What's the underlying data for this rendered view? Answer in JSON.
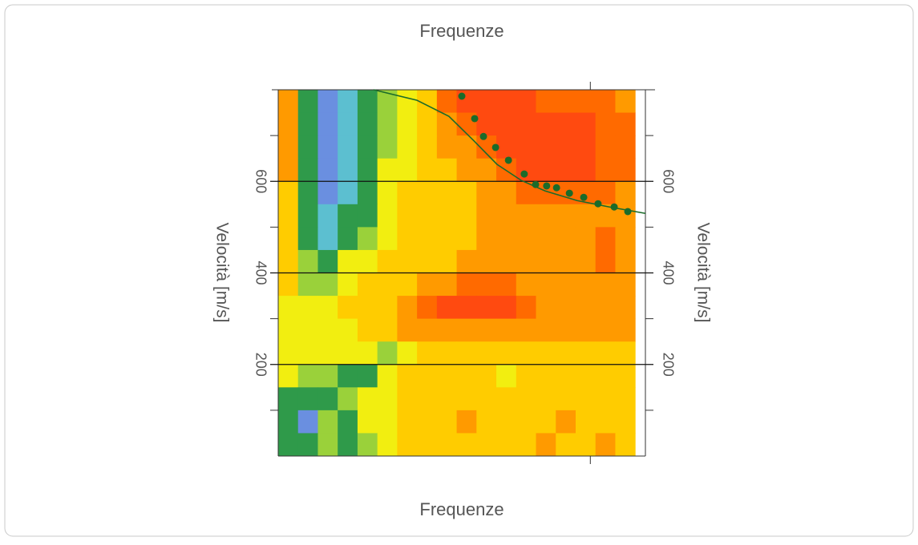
{
  "chart_data": {
    "type": "heatmap",
    "title": "Frequenze",
    "xlabel": "Frequenze",
    "ylabel": "Velocità [m/s]",
    "xlim": [
      0,
      100
    ],
    "ylim": [
      0,
      800
    ],
    "xticks": [
      85
    ],
    "yticks": [
      200,
      400,
      600
    ],
    "minor_yticks": [
      100,
      300,
      500,
      700
    ],
    "grid": true,
    "x": [
      2.7,
      8.1,
      13.5,
      18.9,
      24.3,
      29.7,
      35.1,
      40.5,
      45.9,
      51.3,
      56.7,
      62.1,
      67.5,
      72.9,
      78.3,
      83.7,
      89.1,
      94.5
    ],
    "y": [
      775,
      725,
      675,
      625,
      575,
      525,
      475,
      425,
      375,
      325,
      275,
      225,
      175,
      125,
      75,
      25
    ],
    "z": [
      [
        0.75,
        0.35,
        0.15,
        0.2,
        0.3,
        0.45,
        0.55,
        0.65,
        0.8,
        0.9,
        0.92,
        0.92,
        0.9,
        0.85,
        0.85,
        0.88,
        0.8,
        0.75
      ],
      [
        0.72,
        0.3,
        0.15,
        0.2,
        0.3,
        0.45,
        0.55,
        0.65,
        0.75,
        0.85,
        0.9,
        0.92,
        0.92,
        0.9,
        0.9,
        0.9,
        0.85,
        0.8
      ],
      [
        0.7,
        0.3,
        0.15,
        0.2,
        0.3,
        0.45,
        0.55,
        0.6,
        0.7,
        0.75,
        0.85,
        0.9,
        0.92,
        0.92,
        0.9,
        0.92,
        0.85,
        0.8
      ],
      [
        0.7,
        0.3,
        0.15,
        0.2,
        0.3,
        0.5,
        0.55,
        0.6,
        0.65,
        0.7,
        0.75,
        0.85,
        0.9,
        0.92,
        0.92,
        0.9,
        0.85,
        0.8
      ],
      [
        0.68,
        0.3,
        0.15,
        0.25,
        0.3,
        0.5,
        0.6,
        0.62,
        0.65,
        0.68,
        0.72,
        0.75,
        0.8,
        0.85,
        0.85,
        0.8,
        0.8,
        0.75
      ],
      [
        0.65,
        0.35,
        0.2,
        0.3,
        0.35,
        0.55,
        0.6,
        0.62,
        0.65,
        0.68,
        0.7,
        0.72,
        0.75,
        0.75,
        0.78,
        0.75,
        0.72,
        0.7
      ],
      [
        0.65,
        0.35,
        0.2,
        0.35,
        0.4,
        0.58,
        0.6,
        0.62,
        0.65,
        0.68,
        0.7,
        0.7,
        0.72,
        0.72,
        0.72,
        0.75,
        0.85,
        0.75
      ],
      [
        0.62,
        0.4,
        0.3,
        0.5,
        0.5,
        0.6,
        0.62,
        0.65,
        0.68,
        0.7,
        0.7,
        0.72,
        0.72,
        0.72,
        0.7,
        0.7,
        0.8,
        0.75
      ],
      [
        0.6,
        0.45,
        0.4,
        0.58,
        0.6,
        0.62,
        0.65,
        0.7,
        0.78,
        0.8,
        0.8,
        0.8,
        0.78,
        0.72,
        0.7,
        0.7,
        0.72,
        0.72
      ],
      [
        0.58,
        0.5,
        0.5,
        0.6,
        0.62,
        0.65,
        0.72,
        0.88,
        0.92,
        0.92,
        0.9,
        0.9,
        0.85,
        0.75,
        0.72,
        0.72,
        0.72,
        0.72
      ],
      [
        0.55,
        0.55,
        0.55,
        0.58,
        0.6,
        0.65,
        0.7,
        0.75,
        0.78,
        0.78,
        0.78,
        0.75,
        0.72,
        0.7,
        0.7,
        0.7,
        0.7,
        0.7
      ],
      [
        0.55,
        0.5,
        0.55,
        0.58,
        0.55,
        0.45,
        0.55,
        0.6,
        0.62,
        0.62,
        0.62,
        0.6,
        0.6,
        0.62,
        0.62,
        0.6,
        0.6,
        0.62
      ],
      [
        0.5,
        0.45,
        0.4,
        0.35,
        0.3,
        0.55,
        0.6,
        0.62,
        0.65,
        0.62,
        0.6,
        0.58,
        0.6,
        0.62,
        0.6,
        0.62,
        0.6,
        0.6
      ],
      [
        0.35,
        0.3,
        0.35,
        0.45,
        0.5,
        0.55,
        0.6,
        0.65,
        0.62,
        0.68,
        0.62,
        0.65,
        0.6,
        0.65,
        0.62,
        0.65,
        0.68,
        0.62
      ],
      [
        0.3,
        0.15,
        0.45,
        0.3,
        0.5,
        0.55,
        0.62,
        0.6,
        0.65,
        0.7,
        0.65,
        0.6,
        0.65,
        0.62,
        0.7,
        0.65,
        0.62,
        0.68
      ],
      [
        0.35,
        0.3,
        0.4,
        0.35,
        0.45,
        0.58,
        0.6,
        0.62,
        0.6,
        0.65,
        0.62,
        0.68,
        0.62,
        0.7,
        0.62,
        0.65,
        0.7,
        0.65
      ]
    ],
    "colorscale": [
      "#2020f0",
      "#6a8fe0",
      "#5cbfd0",
      "#2f9a4a",
      "#9ad13a",
      "#f2ee10",
      "#ffcc00",
      "#ff9a00",
      "#ff6a00",
      "#ff4a10"
    ],
    "curve": {
      "color": "#1b6b2a",
      "x": [
        26,
        37.8,
        46.5,
        53.1,
        59.6,
        66.2,
        72.7,
        81.4,
        90.2,
        100
      ],
      "values": [
        800,
        777,
        742,
        690,
        637,
        602,
        579,
        558,
        544,
        530
      ]
    },
    "points": {
      "color": "#1b6b2a",
      "x": [
        50,
        53.5,
        55.9,
        59.2,
        62.7,
        67,
        70.1,
        73.1,
        75.8,
        79.3,
        83.2,
        87.1,
        91.5,
        95.2
      ],
      "values": [
        786,
        737,
        698,
        674,
        646,
        616,
        593,
        590,
        586,
        574,
        565,
        551,
        544,
        534
      ]
    }
  }
}
